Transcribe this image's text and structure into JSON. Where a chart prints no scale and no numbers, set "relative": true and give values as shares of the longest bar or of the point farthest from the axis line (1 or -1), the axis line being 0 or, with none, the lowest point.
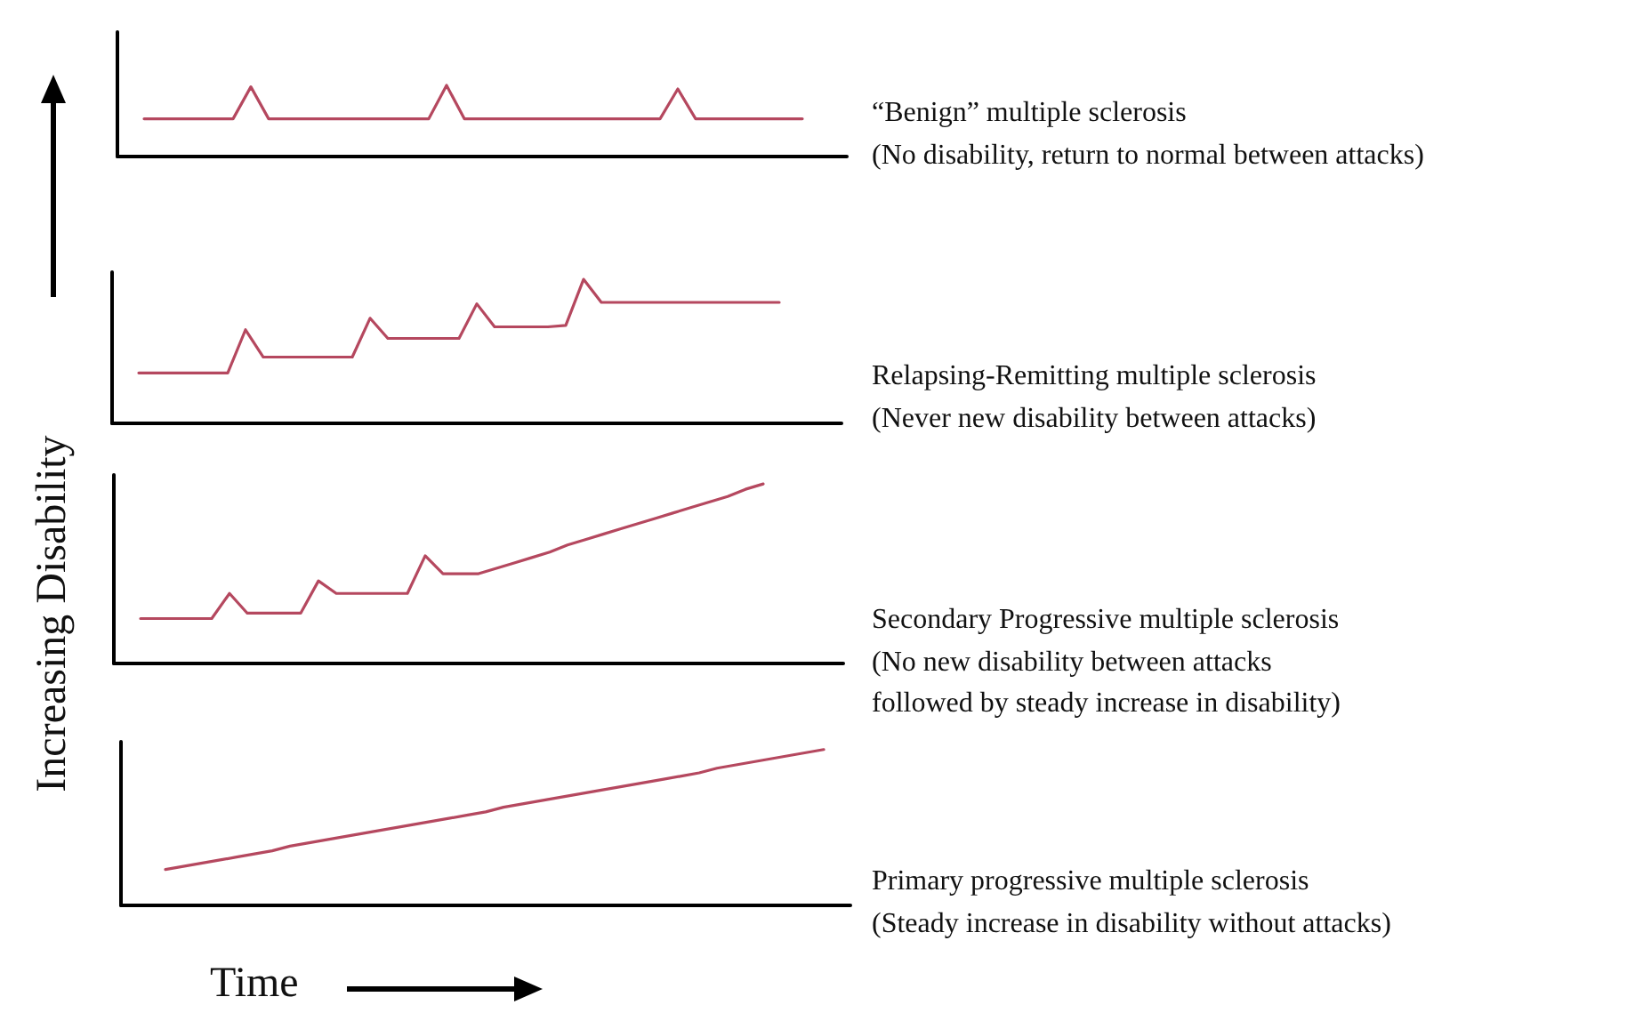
{
  "chart_data": [
    {
      "type": "line",
      "annotations": [
        "“Benign” multiple sclerosis",
        "(No disability, return to normal between attacks)"
      ],
      "relative": true,
      "line_style": "solid",
      "categories": [
        null,
        null,
        null,
        null,
        null,
        null,
        null,
        null,
        null,
        null,
        null,
        null,
        null,
        null,
        null,
        null,
        null,
        null,
        null,
        null,
        null,
        null,
        null,
        null,
        null,
        null,
        null,
        null,
        null,
        null,
        null,
        null,
        null,
        null,
        null,
        null,
        null,
        null,
        null,
        null,
        null
      ],
      "series": [
        {
          "color": "#b5485f",
          "values": [
            null,
            0.53,
            0.53,
            0.53,
            0.53,
            0.53,
            0.53,
            0.98,
            0.53,
            0.53,
            0.53,
            0.53,
            0.53,
            0.53,
            0.53,
            0.53,
            0.53,
            0.53,
            1,
            0.53,
            0.53,
            0.53,
            0.53,
            0.53,
            0.53,
            0.53,
            0.53,
            0.53,
            0.53,
            0.53,
            0.53,
            0.95,
            0.53,
            0.53,
            0.53,
            0.53,
            0.53,
            0.53,
            0.53,
            null,
            null
          ]
        }
      ]
    },
    {
      "type": "line",
      "annotations": [
        "Relapsing-Remitting multiple sclerosis",
        "(Never new disability between attacks)"
      ],
      "relative": true,
      "line_style": "solid",
      "categories": [
        null,
        null,
        null,
        null,
        null,
        null,
        null,
        null,
        null,
        null,
        null,
        null,
        null,
        null,
        null,
        null,
        null,
        null,
        null,
        null,
        null,
        null,
        null,
        null,
        null,
        null,
        null,
        null,
        null,
        null,
        null,
        null,
        null,
        null,
        null,
        null,
        null,
        null,
        null,
        null,
        null
      ],
      "series": [
        {
          "color": "#b5485f",
          "values": [
            null,
            0.35,
            0.35,
            0.35,
            0.35,
            0.35,
            0.35,
            0.65,
            0.46,
            0.46,
            0.46,
            0.46,
            0.46,
            0.46,
            0.73,
            0.59,
            0.59,
            0.59,
            0.59,
            0.59,
            0.83,
            0.67,
            0.67,
            0.67,
            0.67,
            0.68,
            1,
            0.84,
            0.84,
            0.84,
            0.84,
            0.84,
            0.84,
            0.84,
            0.84,
            0.84,
            0.84,
            0.84,
            null,
            null,
            null
          ]
        }
      ]
    },
    {
      "type": "line",
      "annotations": [
        "Secondary Progressive multiple sclerosis",
        "(No new disability between attacks\nfollowed by steady increase in disability)"
      ],
      "ylabel": "Increasing Disability",
      "relative": true,
      "line_style": "solid",
      "categories": [
        null,
        null,
        null,
        null,
        null,
        null,
        null,
        null,
        null,
        null,
        null,
        null,
        null,
        null,
        null,
        null,
        null,
        null,
        null,
        null,
        null,
        null,
        null,
        null,
        null,
        null,
        null,
        null,
        null,
        null,
        null,
        null,
        null,
        null,
        null,
        null,
        null,
        null,
        null,
        null,
        null
      ],
      "series": [
        {
          "color": "#b5485f",
          "values": [
            null,
            0.25,
            0.25,
            0.25,
            0.25,
            0.25,
            0.39,
            0.28,
            0.28,
            0.28,
            0.28,
            0.46,
            0.39,
            0.39,
            0.39,
            0.39,
            0.39,
            0.6,
            0.5,
            0.5,
            0.5,
            0.53,
            0.56,
            0.59,
            0.62,
            0.66,
            0.69,
            0.72,
            0.75,
            0.78,
            0.81,
            0.84,
            0.87,
            0.9,
            0.93,
            0.97,
            1,
            null,
            null,
            null,
            null
          ]
        }
      ]
    },
    {
      "type": "line",
      "annotations": [
        "Primary progressive multiple sclerosis",
        "(Steady increase in disability without attacks)"
      ],
      "xlabel": "Time",
      "relative": true,
      "line_style": "solid",
      "categories": [
        null,
        null,
        null,
        null,
        null,
        null,
        null,
        null,
        null,
        null,
        null,
        null,
        null,
        null,
        null,
        null,
        null,
        null,
        null,
        null,
        null,
        null,
        null,
        null,
        null,
        null,
        null,
        null,
        null,
        null,
        null,
        null,
        null,
        null,
        null,
        null,
        null,
        null,
        null,
        null,
        null
      ],
      "series": [
        {
          "color": "#b5485f",
          "values": [
            null,
            null,
            0.23,
            0.25,
            0.27,
            0.29,
            0.31,
            0.33,
            0.35,
            0.38,
            0.4,
            0.42,
            0.44,
            0.46,
            0.48,
            0.5,
            0.52,
            0.54,
            0.56,
            0.58,
            0.6,
            0.63,
            0.65,
            0.67,
            0.69,
            0.71,
            0.73,
            0.75,
            0.77,
            0.79,
            0.81,
            0.83,
            0.85,
            0.88,
            0.9,
            0.92,
            0.94,
            0.96,
            0.98,
            1,
            null
          ]
        }
      ]
    }
  ]
}
